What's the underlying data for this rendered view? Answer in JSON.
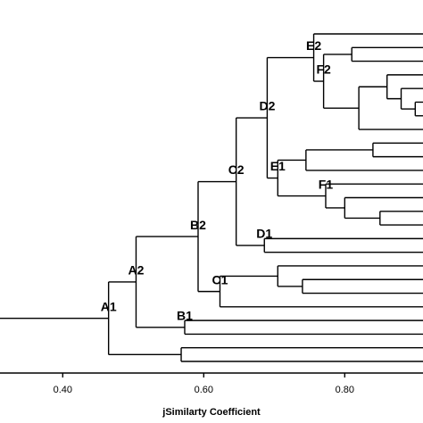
{
  "chart_data": {
    "type": "dendrogram",
    "x_label": "jSimilarty Coefficient",
    "xlim": [
      0.311,
      0.911
    ],
    "xticks": [
      {
        "value": 0.4,
        "label": "0.40"
      },
      {
        "value": 0.6,
        "label": "0.60"
      },
      {
        "value": 0.8,
        "label": "0.80"
      }
    ],
    "color": "#000000",
    "tree": {
      "value": 0.465,
      "label": "A1",
      "children": [
        {
          "value": 0.504,
          "label": "A2",
          "children": [
            {
              "value": 0.592,
              "label": "B2",
              "children": [
                {
                  "value": 0.646,
                  "label": "C2",
                  "children": [
                    {
                      "value": 0.69,
                      "label": "D2",
                      "children": [
                        {
                          "value": 0.756,
                          "label": "E2",
                          "children": [
                            null,
                            {
                              "value": 0.77,
                              "label": "F2",
                              "children": [
                                {
                                  "value": 0.81,
                                  "children": [
                                    null,
                                    null
                                  ]
                                },
                                {
                                  "value": 0.82,
                                  "children": [
                                    {
                                      "value": 0.86,
                                      "children": [
                                        null,
                                        {
                                          "value": 0.88,
                                          "children": [
                                            null,
                                            {
                                              "value": 0.9,
                                              "children": [
                                                null,
                                                null
                                              ]
                                            }
                                          ]
                                        }
                                      ]
                                    },
                                    null
                                  ]
                                }
                              ]
                            }
                          ]
                        },
                        {
                          "value": 0.705,
                          "label": "E1",
                          "children": [
                            {
                              "value": 0.745,
                              "children": [
                                {
                                  "value": 0.84,
                                  "children": [
                                    null,
                                    null
                                  ]
                                },
                                null
                              ]
                            },
                            {
                              "value": 0.773,
                              "label": "F1",
                              "children": [
                                null,
                                {
                                  "value": 0.8,
                                  "children": [
                                    null,
                                    {
                                      "value": 0.85,
                                      "children": [
                                        null,
                                        null
                                      ]
                                    }
                                  ]
                                }
                              ]
                            }
                          ]
                        }
                      ]
                    },
                    {
                      "value": 0.686,
                      "label": "D1",
                      "children": [
                        null,
                        null
                      ]
                    }
                  ]
                },
                {
                  "value": 0.623,
                  "label": "C1",
                  "children": [
                    {
                      "value": 0.705,
                      "children": [
                        null,
                        {
                          "value": 0.74,
                          "children": [
                            null,
                            null
                          ]
                        }
                      ]
                    },
                    null
                  ]
                }
              ]
            },
            {
              "value": 0.573,
              "label": "B1",
              "children": [
                null,
                null
              ]
            }
          ]
        },
        {
          "value": 0.568,
          "children": [
            null,
            null
          ]
        }
      ]
    }
  }
}
